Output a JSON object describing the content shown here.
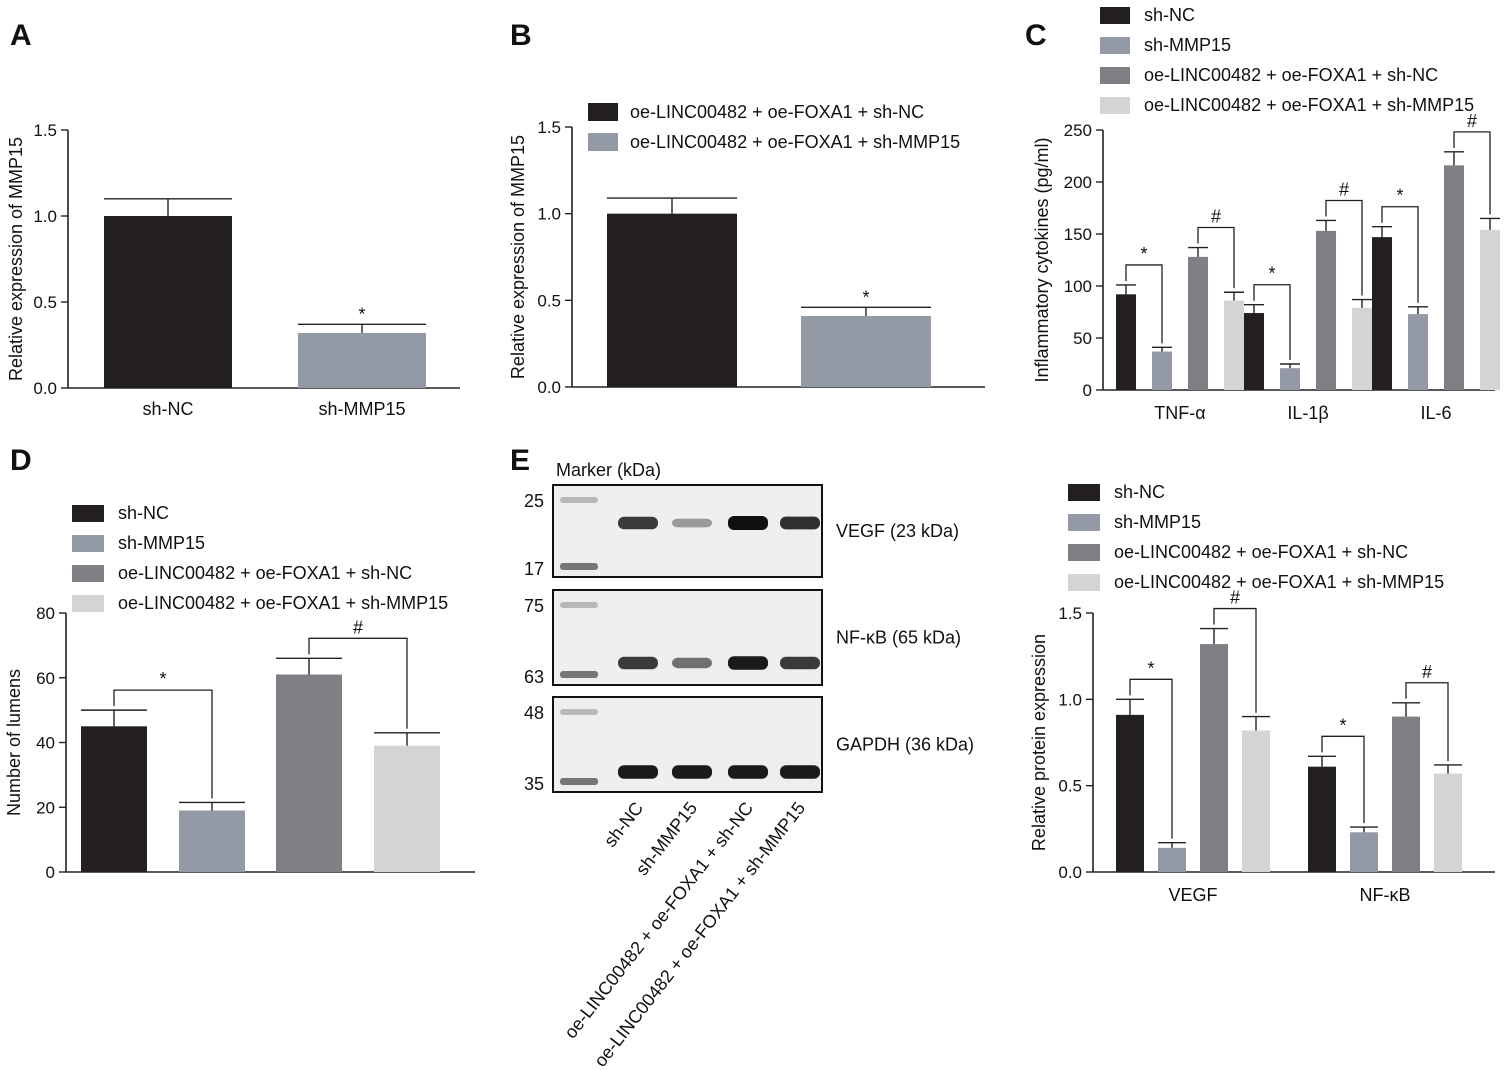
{
  "colors": {
    "sh_nc": "#231f20",
    "sh_mmp15": "#949aa5",
    "oe_sh_nc": "#7e8086",
    "oe_sh_mmp15": "#d3d4d6"
  },
  "chart_data": [
    {
      "id": "A",
      "panel_letter": "A",
      "type": "bar",
      "categories": [
        "sh-NC",
        "sh-MMP15"
      ],
      "series": [
        {
          "values": [
            1.0,
            0.32
          ],
          "errors": [
            0.1,
            0.05
          ]
        }
      ],
      "bar_colors": [
        "#231f20",
        "#949aa5"
      ],
      "ylabel": "Relative expression of MMP15",
      "ylim": [
        0,
        1.5
      ],
      "yticks": [
        "0.0",
        "0.5",
        "1.0",
        "1.5"
      ],
      "annotations": [
        {
          "text": "*",
          "category": 1
        }
      ],
      "legend": null
    },
    {
      "id": "B",
      "panel_letter": "B",
      "type": "bar",
      "categories": [
        "",
        ""
      ],
      "series": [
        {
          "values": [
            1.0,
            0.41
          ],
          "errors": [
            0.09,
            0.05
          ]
        }
      ],
      "bar_colors": [
        "#231f20",
        "#949aa5"
      ],
      "ylabel": "Relative expression of MMP15",
      "ylim": [
        0,
        1.5
      ],
      "yticks": [
        "0.0",
        "0.5",
        "1.0",
        "1.5"
      ],
      "annotations": [
        {
          "text": "*",
          "category": 1
        }
      ],
      "legend": [
        "oe-LINC00482 + oe-FOXA1 + sh-NC",
        "oe-LINC00482 + oe-FOXA1 + sh-MMP15"
      ],
      "legend_placement": "top-right"
    },
    {
      "id": "C",
      "panel_letter": "C",
      "type": "bar",
      "categories": [
        "TNF-α",
        "IL-1β",
        "IL-6"
      ],
      "series": [
        {
          "name": "sh-NC",
          "values": [
            92,
            74,
            147
          ],
          "errors": [
            9,
            8,
            10
          ]
        },
        {
          "name": "sh-MMP15",
          "values": [
            37,
            21,
            73
          ],
          "errors": [
            4,
            4,
            7
          ]
        },
        {
          "name": "oe-LINC00482 + oe-FOXA1 + sh-NC",
          "values": [
            128,
            153,
            216
          ],
          "errors": [
            9,
            10,
            13
          ]
        },
        {
          "name": "oe-LINC00482 + oe-FOXA1 + sh-MMP15",
          "values": [
            86,
            79,
            154
          ],
          "errors": [
            8,
            8,
            11
          ]
        }
      ],
      "ylabel": "Inflammatory cytokines (pg/ml)",
      "ylim": [
        0,
        250
      ],
      "yticks": [
        "0",
        "50",
        "100",
        "150",
        "200",
        "250"
      ],
      "brackets": [
        {
          "category": 0,
          "from": 0,
          "to": 1,
          "text": "*"
        },
        {
          "category": 0,
          "from": 2,
          "to": 3,
          "text": "#"
        },
        {
          "category": 1,
          "from": 0,
          "to": 1,
          "text": "*"
        },
        {
          "category": 1,
          "from": 2,
          "to": 3,
          "text": "#"
        },
        {
          "category": 2,
          "from": 0,
          "to": 1,
          "text": "*"
        },
        {
          "category": 2,
          "from": 2,
          "to": 3,
          "text": "#"
        }
      ],
      "legend_placement": "top"
    },
    {
      "id": "D",
      "panel_letter": "D",
      "type": "bar",
      "categories": [
        ""
      ],
      "series": [
        {
          "name": "sh-NC",
          "values": [
            45
          ],
          "errors": [
            5
          ]
        },
        {
          "name": "sh-MMP15",
          "values": [
            19
          ],
          "errors": [
            2.5
          ]
        },
        {
          "name": "oe-LINC00482 + oe-FOXA1 + sh-NC",
          "values": [
            61
          ],
          "errors": [
            5
          ]
        },
        {
          "name": "oe-LINC00482 + oe-FOXA1 + sh-MMP15",
          "values": [
            39
          ],
          "errors": [
            4
          ]
        }
      ],
      "ylabel": "Number of lumens",
      "ylim": [
        0,
        80
      ],
      "yticks": [
        "0",
        "20",
        "40",
        "60",
        "80"
      ],
      "brackets": [
        {
          "category": 0,
          "from": 0,
          "to": 1,
          "text": "*"
        },
        {
          "category": 0,
          "from": 2,
          "to": 3,
          "text": "#"
        }
      ],
      "legend_placement": "top"
    },
    {
      "id": "E",
      "panel_letter": "E",
      "type": "bar",
      "categories": [
        "VEGF",
        "NF-κB"
      ],
      "series": [
        {
          "name": "sh-NC",
          "values": [
            0.91,
            0.61
          ],
          "errors": [
            0.09,
            0.06
          ]
        },
        {
          "name": "sh-MMP15",
          "values": [
            0.14,
            0.23
          ],
          "errors": [
            0.03,
            0.03
          ]
        },
        {
          "name": "oe-LINC00482 + oe-FOXA1 + sh-NC",
          "values": [
            1.32,
            0.9
          ],
          "errors": [
            0.09,
            0.08
          ]
        },
        {
          "name": "oe-LINC00482 + oe-FOXA1 + sh-MMP15",
          "values": [
            0.82,
            0.57
          ],
          "errors": [
            0.08,
            0.05
          ]
        }
      ],
      "ylabel": "Relative protein expression",
      "ylim": [
        0,
        1.5
      ],
      "yticks": [
        "0.0",
        "0.5",
        "1.0",
        "1.5"
      ],
      "brackets": [
        {
          "category": 0,
          "from": 0,
          "to": 1,
          "text": "*"
        },
        {
          "category": 0,
          "from": 2,
          "to": 3,
          "text": "#"
        },
        {
          "category": 1,
          "from": 0,
          "to": 1,
          "text": "*"
        },
        {
          "category": 1,
          "from": 2,
          "to": 3,
          "text": "#"
        }
      ],
      "legend_placement": "top"
    }
  ],
  "blot": {
    "marker_title": "Marker (kDa)",
    "lane_labels": [
      "sh-NC",
      "sh-MMP15",
      "oe-LINC00482 + oe-FOXA1 + sh-NC",
      "oe-LINC00482 + oe-FOXA1 + sh-MMP15"
    ],
    "strips": [
      {
        "label": "VEGF (23 kDa)",
        "markers": [
          "25",
          "17"
        ],
        "intensities": [
          0.8,
          0.35,
          1.0,
          0.85
        ]
      },
      {
        "label": "NF-κB (65 kDa)",
        "markers": [
          "75",
          "63"
        ],
        "intensities": [
          0.8,
          0.55,
          0.95,
          0.8
        ]
      },
      {
        "label": "GAPDH (36 kDa)",
        "markers": [
          "48",
          "35"
        ],
        "intensities": [
          0.95,
          0.95,
          0.95,
          0.95
        ]
      }
    ]
  }
}
